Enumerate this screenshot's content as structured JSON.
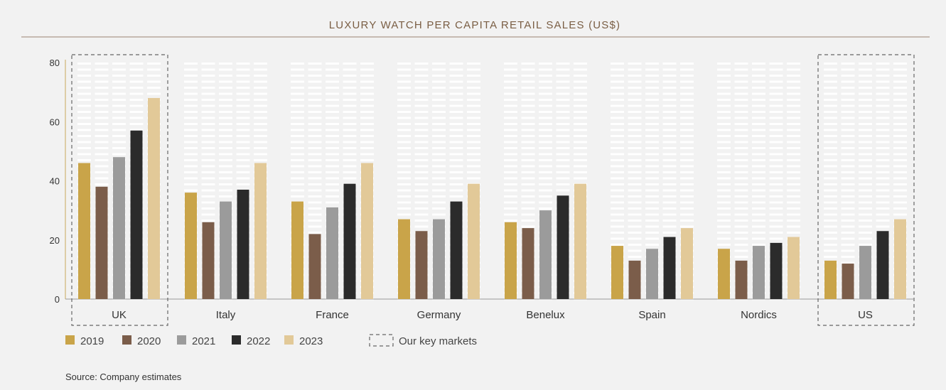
{
  "chart_data": {
    "type": "bar",
    "title": "LUXURY WATCH PER CAPITA RETAIL SALES (US$)",
    "categories": [
      "UK",
      "Italy",
      "France",
      "Germany",
      "Benelux",
      "Spain",
      "Nordics",
      "US"
    ],
    "series": [
      {
        "name": "2019",
        "color": "#c9a449",
        "values": [
          46,
          36,
          33,
          27,
          26,
          18,
          17,
          13
        ]
      },
      {
        "name": "2020",
        "color": "#7b5d4a",
        "values": [
          38,
          26,
          22,
          23,
          24,
          13,
          13,
          12
        ]
      },
      {
        "name": "2021",
        "color": "#9b9b9b",
        "values": [
          48,
          33,
          31,
          27,
          30,
          17,
          18,
          18
        ]
      },
      {
        "name": "2022",
        "color": "#2b2b2b",
        "values": [
          57,
          37,
          39,
          33,
          35,
          21,
          19,
          23
        ]
      },
      {
        "name": "2023",
        "color": "#e2c998",
        "values": [
          68,
          46,
          46,
          39,
          39,
          24,
          21,
          27
        ]
      }
    ],
    "ylim": [
      0,
      80
    ],
    "yticks": [
      0,
      20,
      40,
      60,
      80
    ],
    "key_markets": [
      "UK",
      "US"
    ],
    "key_markets_label": "Our key markets",
    "legend_position": "bottom-left",
    "source": "Source: Company estimates"
  }
}
